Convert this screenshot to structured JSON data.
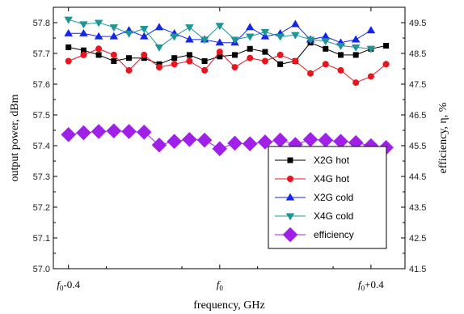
{
  "chart_data": {
    "type": "line",
    "x_label": "frequency, GHz",
    "y_label": "output power, dBm",
    "y2_label": "efficiency, η, %",
    "x_tick_labels": [
      {
        "x": -0.4,
        "base": "f",
        "sub": "0",
        "suffix": "-0.4"
      },
      {
        "x": 0.0,
        "base": "f",
        "sub": "0",
        "suffix": ""
      },
      {
        "x": 0.4,
        "base": "f",
        "sub": "0",
        "suffix": "+0.4"
      }
    ],
    "xlim": [
      -0.44,
      0.49
    ],
    "ylim": [
      57.0,
      57.85
    ],
    "y2lim": [
      41.5,
      50.0
    ],
    "y_ticks": [
      "57.0",
      "57.1",
      "57.2",
      "57.3",
      "57.4",
      "57.5",
      "57.6",
      "57.7",
      "57.8"
    ],
    "y2_ticks": [
      "41.5",
      "42.5",
      "43.5",
      "44.5",
      "45.5",
      "46.5",
      "47.5",
      "48.5",
      "49.5"
    ],
    "legend_position": "center-right",
    "series": [
      {
        "name": "X2G  hot",
        "axis": "left",
        "color": "#000000",
        "marker": "square",
        "x": [
          -0.4,
          -0.36,
          -0.32,
          -0.28,
          -0.24,
          -0.2,
          -0.16,
          -0.12,
          -0.08,
          -0.04,
          0.0,
          0.04,
          0.08,
          0.12,
          0.16,
          0.2,
          0.24,
          0.28,
          0.32,
          0.36,
          0.4,
          0.44
        ],
        "values": [
          57.72,
          57.71,
          57.695,
          57.675,
          57.685,
          57.685,
          57.665,
          57.685,
          57.695,
          57.675,
          57.69,
          57.695,
          57.715,
          57.705,
          57.665,
          57.675,
          57.735,
          57.715,
          57.695,
          57.695,
          57.715,
          57.725
        ]
      },
      {
        "name": "X4G  hot",
        "axis": "left",
        "color": "#e8141e",
        "marker": "circle",
        "x": [
          -0.4,
          -0.36,
          -0.32,
          -0.28,
          -0.24,
          -0.2,
          -0.16,
          -0.12,
          -0.08,
          -0.04,
          0.0,
          0.04,
          0.08,
          0.12,
          0.16,
          0.2,
          0.24,
          0.28,
          0.32,
          0.36,
          0.4,
          0.44
        ],
        "values": [
          57.675,
          57.695,
          57.715,
          57.695,
          57.645,
          57.695,
          57.655,
          57.665,
          57.675,
          57.645,
          57.705,
          57.655,
          57.685,
          57.675,
          57.695,
          57.675,
          57.635,
          57.665,
          57.645,
          57.605,
          57.625,
          57.665
        ]
      },
      {
        "name": "X2G  cold",
        "axis": "left",
        "color": "#1426e8",
        "marker": "triangle-up",
        "x": [
          -0.4,
          -0.36,
          -0.32,
          -0.28,
          -0.24,
          -0.2,
          -0.16,
          -0.12,
          -0.08,
          -0.04,
          0.0,
          0.04,
          0.08,
          0.12,
          0.16,
          0.2,
          0.24,
          0.28,
          0.32,
          0.36,
          0.4
        ],
        "values": [
          57.765,
          57.765,
          57.755,
          57.755,
          57.775,
          57.755,
          57.785,
          57.765,
          57.745,
          57.745,
          57.735,
          57.735,
          57.785,
          57.755,
          57.765,
          57.795,
          57.745,
          57.755,
          57.735,
          57.745,
          57.775
        ]
      },
      {
        "name": "X4G  cold",
        "axis": "left",
        "color": "#1e9696",
        "marker": "triangle-down",
        "x": [
          -0.4,
          -0.36,
          -0.32,
          -0.28,
          -0.24,
          -0.2,
          -0.16,
          -0.12,
          -0.08,
          -0.04,
          0.0,
          0.04,
          0.08,
          0.12,
          0.16,
          0.2,
          0.24,
          0.28,
          0.32,
          0.36,
          0.4
        ],
        "values": [
          57.81,
          57.795,
          57.8,
          57.785,
          57.765,
          57.78,
          57.72,
          57.755,
          57.785,
          57.745,
          57.79,
          57.745,
          57.755,
          57.77,
          57.755,
          57.76,
          57.745,
          57.74,
          57.725,
          57.72,
          57.715
        ]
      },
      {
        "name": "efficiency",
        "axis": "right",
        "color": "#a020e8",
        "marker": "diamond",
        "x": [
          -0.4,
          -0.36,
          -0.32,
          -0.28,
          -0.24,
          -0.2,
          -0.16,
          -0.12,
          -0.08,
          -0.04,
          0.0,
          0.04,
          0.08,
          0.12,
          0.16,
          0.2,
          0.24,
          0.28,
          0.32,
          0.36,
          0.4,
          0.44
        ],
        "values": [
          45.86,
          45.92,
          45.96,
          45.98,
          45.96,
          45.94,
          45.52,
          45.64,
          45.7,
          45.68,
          45.4,
          45.58,
          45.56,
          45.62,
          45.68,
          45.54,
          45.7,
          45.68,
          45.64,
          45.6,
          45.5,
          45.44
        ]
      }
    ]
  }
}
